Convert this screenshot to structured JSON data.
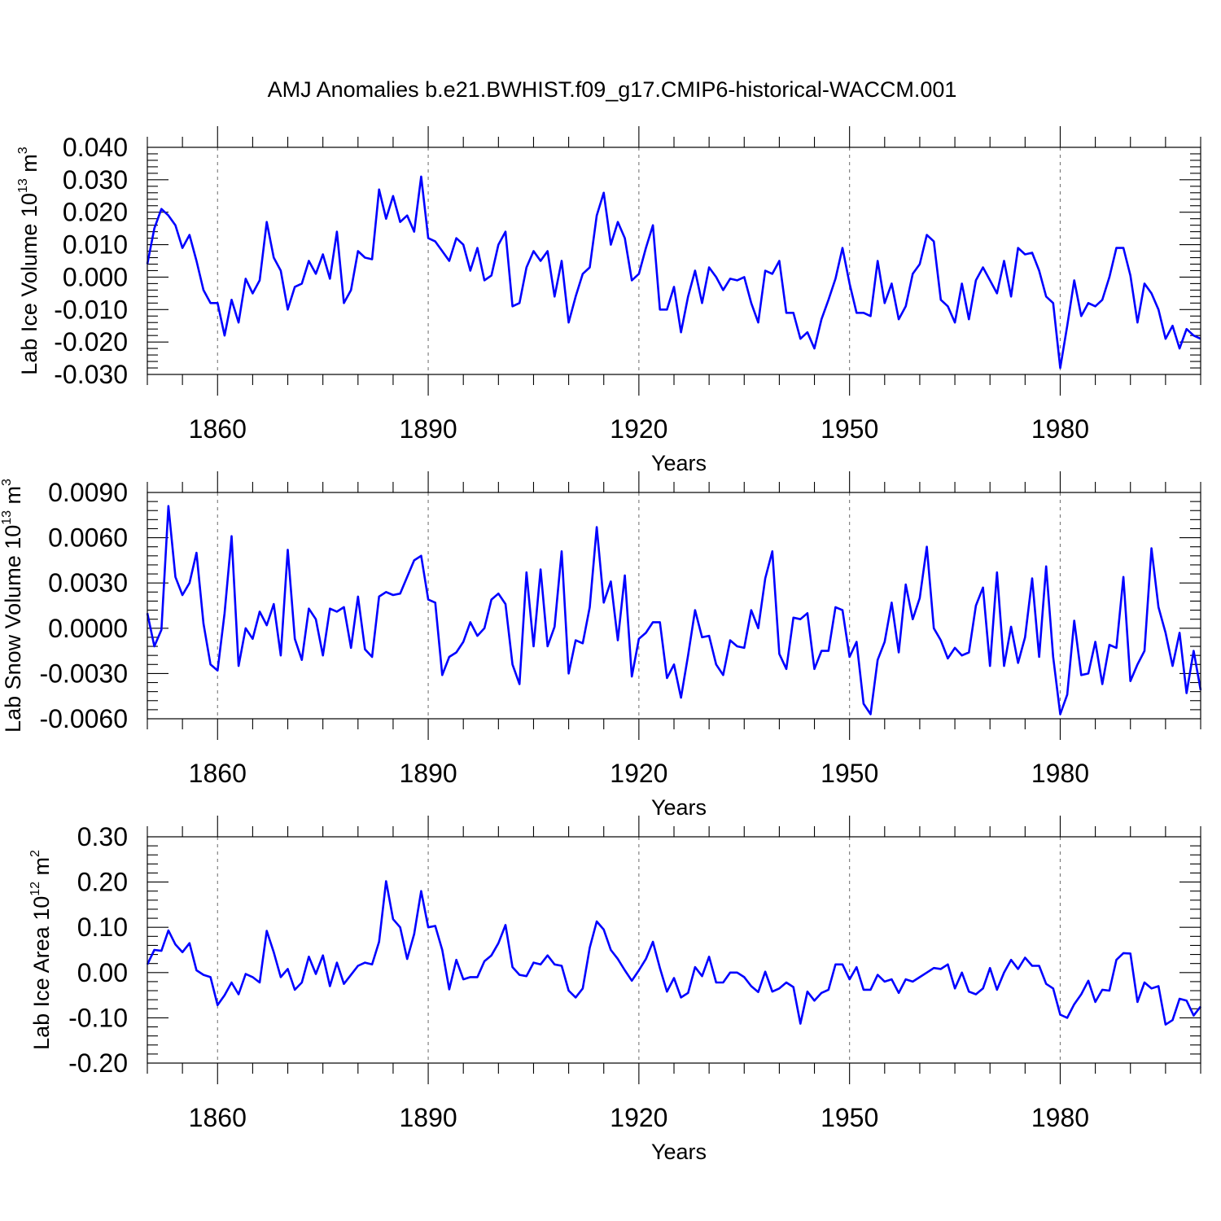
{
  "chart_data": {
    "title": "AMJ Anomalies b.e21.BWHIST.f09_g17.CMIP6-historical-WACCM.001",
    "xlim": [
      1850,
      2000
    ],
    "x_start": 1850,
    "vertical_grid_years": [
      1860,
      1890,
      1920,
      1950,
      1980
    ],
    "panels": [
      {
        "type": "line",
        "ylabel": "Lab Ice Volume 10",
        "ylabel_exp": "13",
        "ylabel_unit": " m",
        "ylabel_unit_exp": "3",
        "xlabel": "Years",
        "ylim": [
          -0.03,
          0.04
        ],
        "yticks": [
          "0.040",
          "0.030",
          "0.020",
          "0.010",
          "0.000",
          "-0.010",
          "-0.020",
          "-0.030"
        ],
        "ytick_values": [
          0.04,
          0.03,
          0.02,
          0.01,
          0.0,
          -0.01,
          -0.02,
          -0.03
        ],
        "xticks": [
          "1860",
          "1890",
          "1920",
          "1950",
          "1980"
        ],
        "xtick_values": [
          1860,
          1890,
          1920,
          1950,
          1980
        ],
        "color": "#0000ff",
        "values": [
          0.004,
          0.015,
          0.021,
          0.019,
          0.016,
          0.009,
          0.013,
          0.005,
          -0.004,
          -0.008,
          -0.008,
          -0.018,
          -0.007,
          -0.014,
          -0.0005,
          -0.005,
          -0.001,
          0.017,
          0.006,
          0.002,
          -0.01,
          -0.003,
          -0.002,
          0.005,
          0.001,
          0.007,
          -0.0005,
          0.014,
          -0.008,
          -0.004,
          0.008,
          0.006,
          0.0055,
          0.027,
          0.018,
          0.025,
          0.017,
          0.019,
          0.014,
          0.031,
          0.012,
          0.011,
          0.008,
          0.005,
          0.012,
          0.01,
          0.002,
          0.009,
          -0.001,
          0.0005,
          0.01,
          0.014,
          -0.009,
          -0.008,
          0.003,
          0.008,
          0.005,
          0.008,
          -0.006,
          0.005,
          -0.014,
          -0.006,
          0.001,
          0.003,
          0.019,
          0.026,
          0.01,
          0.017,
          0.012,
          -0.001,
          0.001,
          0.009,
          0.016,
          -0.01,
          -0.01,
          -0.003,
          -0.017,
          -0.006,
          0.002,
          -0.008,
          0.003,
          0.0,
          -0.004,
          -0.0005,
          -0.001,
          0.0,
          -0.008,
          -0.014,
          0.002,
          0.001,
          0.005,
          -0.011,
          -0.011,
          -0.019,
          -0.017,
          -0.022,
          -0.013,
          -0.007,
          -0.0005,
          0.009,
          -0.002,
          -0.011,
          -0.011,
          -0.012,
          0.005,
          -0.008,
          -0.002,
          -0.013,
          -0.009,
          0.001,
          0.004,
          0.013,
          0.011,
          -0.007,
          -0.009,
          -0.014,
          -0.002,
          -0.013,
          -0.001,
          0.003,
          -0.001,
          -0.005,
          0.005,
          -0.006,
          0.009,
          0.007,
          0.0075,
          0.002,
          -0.006,
          -0.008,
          -0.028,
          -0.015,
          -0.001,
          -0.012,
          -0.008,
          -0.009,
          -0.007,
          0.0,
          0.009,
          0.009,
          0.0005,
          -0.014,
          -0.002,
          -0.005,
          -0.01,
          -0.019,
          -0.015,
          -0.022,
          -0.016,
          -0.018,
          -0.019
        ]
      },
      {
        "type": "line",
        "ylabel": "Lab Snow Volume 10",
        "ylabel_exp": "13",
        "ylabel_unit": " m",
        "ylabel_unit_exp": "3",
        "xlabel": "Years",
        "ylim": [
          -0.006,
          0.009
        ],
        "yticks": [
          "0.0090",
          "0.0060",
          "0.0030",
          "0.0000",
          "-0.0030",
          "-0.0060"
        ],
        "ytick_values": [
          0.009,
          0.006,
          0.003,
          0.0,
          -0.003,
          -0.006
        ],
        "xticks": [
          "1860",
          "1890",
          "1920",
          "1950",
          "1980"
        ],
        "xtick_values": [
          1860,
          1890,
          1920,
          1950,
          1980
        ],
        "color": "#0000ff",
        "values": [
          0.001,
          -0.0012,
          -0.0001,
          0.0081,
          0.0034,
          0.0022,
          0.003,
          0.005,
          0.0003,
          -0.0024,
          -0.0028,
          0.001,
          0.0061,
          -0.0025,
          0.0,
          -0.0007,
          0.0011,
          0.0002,
          0.0016,
          -0.0018,
          0.0052,
          -0.0007,
          -0.0021,
          0.0013,
          0.0006,
          -0.0018,
          0.0013,
          0.0011,
          0.0014,
          -0.0013,
          0.0021,
          -0.0014,
          -0.0019,
          0.0021,
          0.0024,
          0.0022,
          0.0023,
          0.0034,
          0.0045,
          0.0048,
          0.0019,
          0.0017,
          -0.0031,
          -0.0019,
          -0.0016,
          -0.0009,
          0.0004,
          -0.0005,
          0.0,
          0.0019,
          0.0023,
          0.0016,
          -0.0024,
          -0.0037,
          0.0037,
          -0.0012,
          0.0039,
          -0.0012,
          0.0001,
          0.0051,
          -0.003,
          -0.0008,
          -0.001,
          0.0014,
          0.0067,
          0.0017,
          0.0031,
          -0.0008,
          0.0035,
          -0.0032,
          -0.0007,
          -0.0003,
          0.0004,
          0.0004,
          -0.0033,
          -0.0024,
          -0.0046,
          -0.0018,
          0.0012,
          -0.0006,
          -0.0005,
          -0.0024,
          -0.0031,
          -0.0008,
          -0.0012,
          -0.0013,
          0.0012,
          0.0,
          0.0033,
          0.0051,
          -0.0017,
          -0.0027,
          0.0007,
          0.0006,
          0.001,
          -0.0027,
          -0.0015,
          -0.0015,
          0.0014,
          0.0012,
          -0.0019,
          -0.0009,
          -0.005,
          -0.0057,
          -0.0021,
          -0.0009,
          0.0017,
          -0.0016,
          0.0029,
          0.0006,
          0.002,
          0.0054,
          0.0,
          -0.0008,
          -0.002,
          -0.0013,
          -0.0018,
          -0.0016,
          0.0015,
          0.0027,
          -0.0025,
          0.0037,
          -0.0025,
          0.0001,
          -0.0023,
          -0.0006,
          0.0033,
          -0.0019,
          0.0041,
          -0.0019,
          -0.0057,
          -0.0044,
          0.0005,
          -0.0031,
          -0.003,
          -0.0009,
          -0.0037,
          -0.0011,
          -0.0013,
          0.0034,
          -0.0035,
          -0.0024,
          -0.0015,
          0.0053,
          0.0014,
          -0.0003,
          -0.0025,
          -0.0003,
          -0.0043,
          -0.0015,
          -0.0041
        ]
      },
      {
        "type": "line",
        "ylabel": "Lab Ice Area 10",
        "ylabel_exp": "12",
        "ylabel_unit": " m",
        "ylabel_unit_exp": "2",
        "xlabel": "Years",
        "ylim": [
          -0.2,
          0.3
        ],
        "yticks": [
          "0.30",
          "0.20",
          "0.10",
          "0.00",
          "-0.10",
          "-0.20"
        ],
        "ytick_values": [
          0.3,
          0.2,
          0.1,
          0.0,
          -0.1,
          -0.2
        ],
        "xticks": [
          "1860",
          "1890",
          "1920",
          "1950",
          "1980"
        ],
        "xtick_values": [
          1860,
          1890,
          1920,
          1950,
          1980
        ],
        "color": "#0000ff",
        "values": [
          0.018,
          0.05,
          0.048,
          0.093,
          0.062,
          0.045,
          0.065,
          0.005,
          -0.005,
          -0.01,
          -0.072,
          -0.05,
          -0.022,
          -0.048,
          -0.003,
          -0.01,
          -0.022,
          0.092,
          0.045,
          -0.01,
          0.008,
          -0.038,
          -0.022,
          0.035,
          -0.003,
          0.038,
          -0.03,
          0.022,
          -0.025,
          -0.005,
          0.015,
          0.022,
          0.018,
          0.068,
          0.202,
          0.118,
          0.1,
          0.03,
          0.085,
          0.18,
          0.1,
          0.103,
          0.05,
          -0.037,
          0.028,
          -0.015,
          -0.01,
          -0.01,
          0.025,
          0.038,
          0.065,
          0.105,
          0.012,
          -0.005,
          -0.008,
          0.022,
          0.018,
          0.038,
          0.018,
          0.015,
          -0.04,
          -0.055,
          -0.035,
          0.055,
          0.113,
          0.095,
          0.05,
          0.03,
          0.005,
          -0.018,
          0.005,
          0.03,
          0.068,
          0.01,
          -0.042,
          -0.012,
          -0.055,
          -0.045,
          0.012,
          -0.008,
          0.035,
          -0.022,
          -0.022,
          0.0,
          0.0,
          -0.01,
          -0.03,
          -0.043,
          0.002,
          -0.042,
          -0.035,
          -0.022,
          -0.032,
          -0.113,
          -0.042,
          -0.062,
          -0.045,
          -0.038,
          0.018,
          0.018,
          -0.015,
          0.012,
          -0.038,
          -0.038,
          -0.005,
          -0.02,
          -0.015,
          -0.045,
          -0.015,
          -0.02,
          -0.01,
          0.0,
          0.01,
          0.008,
          0.018,
          -0.035,
          0.0,
          -0.042,
          -0.048,
          -0.035,
          0.01,
          -0.038,
          0.0,
          0.028,
          0.008,
          0.033,
          0.015,
          0.015,
          -0.025,
          -0.035,
          -0.093,
          -0.1,
          -0.07,
          -0.048,
          -0.018,
          -0.065,
          -0.038,
          -0.04,
          0.028,
          0.043,
          0.042,
          -0.065,
          -0.022,
          -0.035,
          -0.03,
          -0.115,
          -0.105,
          -0.058,
          -0.062,
          -0.095,
          -0.075
        ]
      }
    ]
  }
}
